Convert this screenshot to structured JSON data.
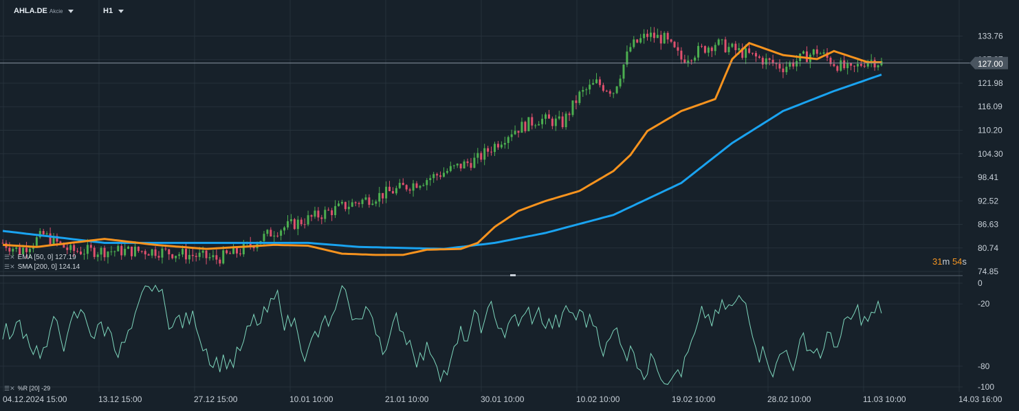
{
  "header": {
    "symbol": "AHLA.DE",
    "instrument_type": "Akcie",
    "timeframe": "H1"
  },
  "indicators": {
    "ema": {
      "label": "EMA",
      "params": "[50, 0]",
      "value": "127.19",
      "color": "#f7931e"
    },
    "sma": {
      "label": "SMA",
      "params": "[200, 0]",
      "value": "124.14",
      "color": "#1aa3f0"
    },
    "wr": {
      "label": "%R",
      "params": "[20]",
      "value": "-29",
      "color": "#7fd8be"
    }
  },
  "timer": {
    "minutes": "31",
    "minutes_unit": "m",
    "seconds": "54",
    "seconds_unit": "s"
  },
  "colors": {
    "background": "#17212a",
    "grid": "#26313b",
    "up": "#4caf50",
    "down": "#e0506e",
    "price_tag": "#4a5560"
  },
  "chart_data": [
    {
      "type": "candlestick",
      "title": "",
      "x_tick_labels": [
        "04.12.2024 15:00",
        "13.12 15:00",
        "27.12 15:00",
        "10.01 10:00",
        "21.01 10:00",
        "30.01 10:00",
        "10.02 10:00",
        "19.02 10:00",
        "28.02 10:00",
        "11.03 10:00",
        "14.03 16:00"
      ],
      "y_tick_labels": [
        "74.85",
        "80.74",
        "86.63",
        "92.52",
        "98.41",
        "104.30",
        "110.20",
        "116.09",
        "121.98",
        "127.87",
        "133.76"
      ],
      "ylim": [
        74.85,
        139.0
      ],
      "current_price": "127.00",
      "approx_close_path": [
        [
          0,
          82
        ],
        [
          5,
          80
        ],
        [
          12,
          84
        ],
        [
          20,
          80
        ],
        [
          30,
          80
        ],
        [
          45,
          80
        ],
        [
          55,
          79
        ],
        [
          63,
          78
        ],
        [
          70,
          80
        ],
        [
          80,
          85
        ],
        [
          90,
          88
        ],
        [
          100,
          91
        ],
        [
          115,
          95
        ],
        [
          125,
          98
        ],
        [
          140,
          103
        ],
        [
          150,
          110
        ],
        [
          158,
          113
        ],
        [
          165,
          112
        ],
        [
          170,
          119
        ],
        [
          175,
          122
        ],
        [
          180,
          120
        ],
        [
          185,
          131
        ],
        [
          190,
          134
        ],
        [
          195,
          133
        ],
        [
          200,
          128
        ],
        [
          210,
          132
        ],
        [
          220,
          129
        ],
        [
          230,
          126
        ],
        [
          240,
          130
        ],
        [
          245,
          127
        ],
        [
          250,
          125
        ],
        [
          255,
          128
        ],
        [
          259,
          127
        ]
      ],
      "series": [
        {
          "name": "EMA [50, 0]",
          "last": 127.19,
          "points": [
            [
              0,
              81.5
            ],
            [
              10,
              81
            ],
            [
              20,
              82
            ],
            [
              30,
              83
            ],
            [
              45,
              81.5
            ],
            [
              60,
              80.5
            ],
            [
              70,
              81
            ],
            [
              80,
              81.5
            ],
            [
              90,
              81.3
            ],
            [
              100,
              79.3
            ],
            [
              110,
              79
            ],
            [
              118,
              79
            ],
            [
              125,
              80.3
            ],
            [
              135,
              80.5
            ],
            [
              140,
              82
            ],
            [
              145,
              86
            ],
            [
              152,
              90
            ],
            [
              160,
              92.5
            ],
            [
              170,
              95
            ],
            [
              180,
              100
            ],
            [
              185,
              104
            ],
            [
              190,
              110
            ],
            [
              200,
              115
            ],
            [
              210,
              118
            ],
            [
              215,
              128
            ],
            [
              220,
              132
            ],
            [
              230,
              129
            ],
            [
              240,
              128
            ],
            [
              245,
              130
            ],
            [
              255,
              127.2
            ],
            [
              259,
              127.2
            ]
          ]
        },
        {
          "name": "SMA [200, 0]",
          "last": 124.14,
          "points": [
            [
              0,
              85
            ],
            [
              30,
              82
            ],
            [
              60,
              82
            ],
            [
              90,
              82
            ],
            [
              105,
              81
            ],
            [
              130,
              80.5
            ],
            [
              145,
              82
            ],
            [
              160,
              84.5
            ],
            [
              180,
              89
            ],
            [
              200,
              97
            ],
            [
              215,
              107
            ],
            [
              230,
              115
            ],
            [
              245,
              120
            ],
            [
              259,
              124.1
            ]
          ]
        }
      ]
    },
    {
      "type": "line",
      "title": "",
      "series_name": "%R [20]",
      "y_tick_labels": [
        "0",
        "-20",
        "-80",
        "-100"
      ],
      "ylim": [
        -100,
        0
      ],
      "last": -29
    }
  ]
}
